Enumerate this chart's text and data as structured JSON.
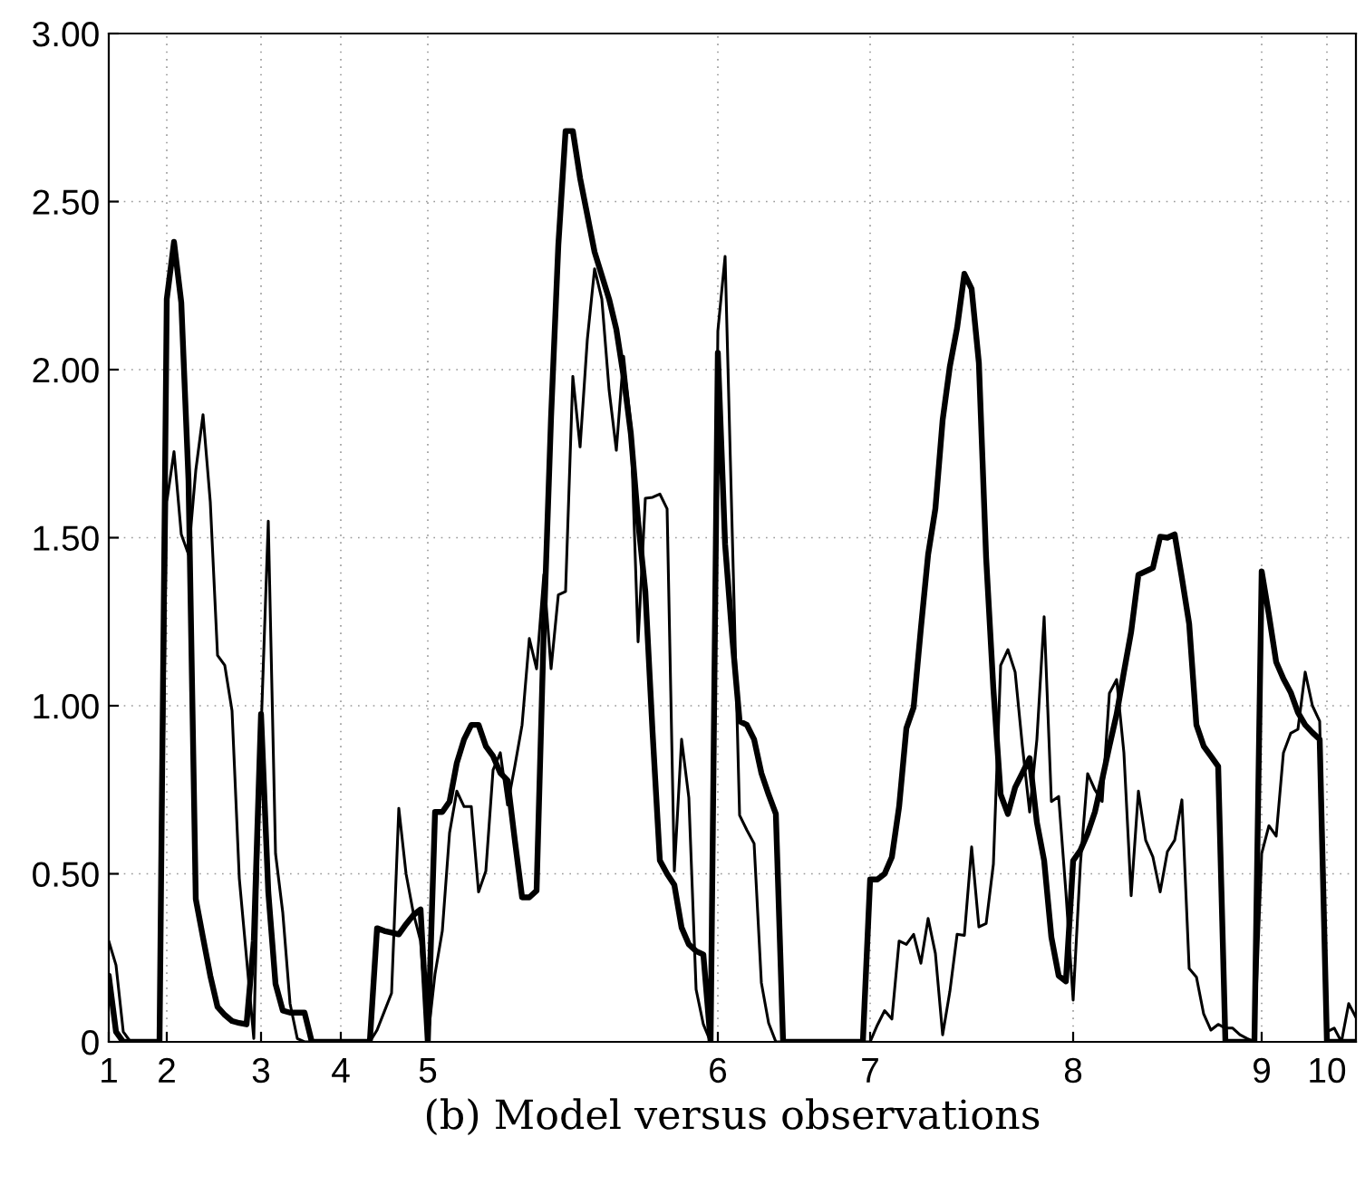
{
  "chart_data": {
    "type": "line",
    "title": "(b) Model versus observations",
    "categories": [
      "1",
      null,
      null,
      null,
      null,
      null,
      null,
      null,
      "2",
      null,
      null,
      null,
      null,
      null,
      null,
      null,
      null,
      null,
      null,
      null,
      null,
      "3",
      null,
      null,
      null,
      null,
      null,
      null,
      null,
      null,
      null,
      null,
      "4",
      null,
      null,
      null,
      null,
      null,
      null,
      null,
      null,
      null,
      null,
      null,
      "5",
      null,
      null,
      null,
      null,
      null,
      null,
      null,
      null,
      null,
      null,
      null,
      null,
      null,
      null,
      null,
      null,
      null,
      null,
      null,
      null,
      null,
      null,
      null,
      null,
      null,
      null,
      null,
      null,
      null,
      null,
      null,
      null,
      null,
      null,
      null,
      null,
      null,
      null,
      null,
      "6",
      null,
      null,
      null,
      null,
      null,
      null,
      null,
      null,
      null,
      null,
      null,
      null,
      null,
      null,
      null,
      null,
      null,
      null,
      null,
      null,
      "7",
      null,
      null,
      null,
      null,
      null,
      null,
      null,
      null,
      null,
      null,
      null,
      null,
      null,
      null,
      null,
      null,
      null,
      null,
      null,
      null,
      null,
      null,
      null,
      null,
      null,
      null,
      null,
      "8",
      null,
      null,
      null,
      null,
      null,
      null,
      null,
      null,
      null,
      null,
      null,
      null,
      null,
      null,
      null,
      null,
      null,
      null,
      null,
      null,
      null,
      null,
      null,
      null,
      null,
      "9",
      null,
      null,
      null,
      null,
      null,
      null,
      null,
      null,
      "10",
      null,
      null,
      null,
      null
    ],
    "ylim": [
      0,
      3
    ],
    "yticks": [
      {
        "value": 0,
        "label": "0"
      },
      {
        "value": 0.5,
        "label": "0.50"
      },
      {
        "value": 1,
        "label": "1.00"
      },
      {
        "value": 1.5,
        "label": "1.50"
      },
      {
        "value": 2,
        "label": "2.00"
      },
      {
        "value": 2.5,
        "label": "2.50"
      },
      {
        "value": 3,
        "label": "3.00"
      }
    ],
    "grid": true,
    "line_style": "solid",
    "marker": "none",
    "series": [
      {
        "color": "#000000",
        "values": [
          0.197,
          0.03,
          0,
          0,
          0,
          0,
          0,
          0,
          2.21,
          2.38,
          2.2,
          1.67,
          0.425,
          0.31,
          0.197,
          0.104,
          0.08,
          0.062,
          0.056,
          0.052,
          0.3,
          0.975,
          0.446,
          0.172,
          0.093,
          0.087,
          0.087,
          0.087,
          0,
          0,
          0,
          0,
          0,
          0,
          0,
          0,
          0,
          0.338,
          0.33,
          0.325,
          0.32,
          0.35,
          0.377,
          0.394,
          0,
          0.684,
          0.684,
          0.715,
          0.83,
          0.9,
          0.943,
          0.943,
          0.88,
          0.85,
          0.8,
          0.778,
          0.6,
          0.43,
          0.43,
          0.45,
          1.23,
          1.86,
          2.37,
          2.71,
          2.71,
          2.57,
          2.46,
          2.35,
          2.28,
          2.21,
          2.12,
          1.98,
          1.81,
          1.55,
          1.34,
          0.92,
          0.54,
          0.5,
          0.467,
          0.34,
          0.29,
          0.27,
          0.26,
          0,
          2.05,
          1.48,
          1.2,
          0.954,
          0.943,
          0.9,
          0.8,
          0.736,
          0.678,
          0,
          0,
          0,
          0,
          0,
          0,
          0,
          0,
          0,
          0,
          0,
          0,
          0.483,
          0.483,
          0.5,
          0.55,
          0.7,
          0.933,
          0.995,
          1.23,
          1.45,
          1.586,
          1.85,
          2.01,
          2.125,
          2.285,
          2.24,
          2.02,
          1.44,
          1.05,
          0.736,
          0.678,
          0.757,
          0.8,
          0.844,
          0.653,
          0.539,
          0.311,
          0.197,
          0.18,
          0.539,
          0.57,
          0.62,
          0.684,
          0.78,
          0.88,
          0.975,
          1.1,
          1.22,
          1.39,
          1.4,
          1.41,
          1.503,
          1.5,
          1.51,
          1.38,
          1.244,
          0.943,
          0.88,
          0.85,
          0.82,
          0,
          0,
          0,
          0,
          0,
          1.4,
          1.27,
          1.13,
          1.08,
          1.04,
          0.98,
          0.943,
          0.92,
          0.9,
          0,
          0,
          0,
          0,
          0
        ]
      },
      {
        "color": "#000000",
        "values": [
          0.3,
          0.228,
          0.03,
          0,
          0,
          0,
          0,
          0,
          1.607,
          1.756,
          1.51,
          1.45,
          1.7,
          1.866,
          1.607,
          1.15,
          1.12,
          0.985,
          0.487,
          0.25,
          0.01,
          0.923,
          1.549,
          0.56,
          0.384,
          0.114,
          0.01,
          0,
          0,
          0,
          0,
          0,
          0,
          0,
          0,
          0,
          0,
          0.035,
          0.09,
          0.145,
          0.695,
          0.5,
          0.384,
          0.3,
          0.01,
          0.203,
          0.33,
          0.622,
          0.746,
          0.7,
          0.7,
          0.446,
          0.508,
          0.809,
          0.86,
          0.705,
          0.82,
          0.943,
          1.2,
          1.11,
          1.39,
          1.11,
          1.33,
          1.34,
          1.98,
          1.77,
          2.09,
          2.3,
          2.21,
          1.94,
          1.76,
          2.04,
          1.835,
          1.19,
          1.617,
          1.62,
          1.63,
          1.586,
          0.508,
          0.9,
          0.726,
          0.156,
          0.052,
          0,
          2.115,
          2.337,
          1.503,
          0.674,
          0.63,
          0.59,
          0.176,
          0.056,
          0,
          0,
          0,
          0,
          0,
          0,
          0,
          0,
          0,
          0,
          0,
          0,
          0,
          0,
          0.05,
          0.093,
          0.068,
          0.3,
          0.29,
          0.32,
          0.234,
          0.367,
          0.263,
          0.021,
          0.15,
          0.32,
          0.317,
          0.58,
          0.342,
          0.352,
          0.529,
          1.12,
          1.167,
          1.1,
          0.88,
          0.684,
          0.9,
          1.265,
          0.715,
          0.73,
          0.446,
          0.124,
          0.529,
          0.798,
          0.75,
          0.715,
          1.037,
          1.078,
          0.86,
          0.435,
          0.746,
          0.6,
          0.55,
          0.446,
          0.566,
          0.6,
          0.72,
          0.218,
          0.193,
          0.083,
          0.035,
          0.052,
          0.041,
          0.041,
          0.021,
          0.01,
          0,
          0.56,
          0.643,
          0.612,
          0.86,
          0.918,
          0.93,
          1.1,
          1.0,
          0.954,
          0.03,
          0.041,
          0,
          0.114,
          0.073
        ]
      }
    ]
  }
}
